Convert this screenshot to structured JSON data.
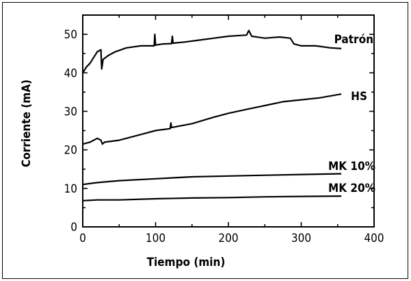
{
  "chart_data": {
    "type": "line",
    "xlabel": "Tiempo (min)",
    "ylabel": "Corriente (mA)",
    "xlim": [
      0,
      400
    ],
    "ylim": [
      0,
      55
    ],
    "xticks": [
      0,
      100,
      200,
      300,
      400
    ],
    "yticks": [
      0,
      10,
      20,
      30,
      40,
      50
    ],
    "grid": false,
    "series": [
      {
        "name": "Patrón",
        "points": [
          [
            0,
            40
          ],
          [
            5,
            41.5
          ],
          [
            10,
            42.5
          ],
          [
            15,
            44
          ],
          [
            20,
            45.5
          ],
          [
            25,
            46
          ],
          [
            26,
            41
          ],
          [
            28,
            43.5
          ],
          [
            35,
            44.5
          ],
          [
            45,
            45.5
          ],
          [
            60,
            46.5
          ],
          [
            80,
            47
          ],
          [
            98,
            47
          ],
          [
            99,
            50
          ],
          [
            100,
            47.2
          ],
          [
            110,
            47.5
          ],
          [
            122,
            47.6
          ],
          [
            123,
            49.5
          ],
          [
            124,
            47.7
          ],
          [
            140,
            48
          ],
          [
            160,
            48.5
          ],
          [
            180,
            49
          ],
          [
            200,
            49.5
          ],
          [
            225,
            49.8
          ],
          [
            228,
            51
          ],
          [
            232,
            49.5
          ],
          [
            250,
            49
          ],
          [
            270,
            49.3
          ],
          [
            285,
            49
          ],
          [
            290,
            47.5
          ],
          [
            300,
            47
          ],
          [
            320,
            47
          ],
          [
            340,
            46.5
          ],
          [
            355,
            46.3
          ]
        ]
      },
      {
        "name": "HS",
        "points": [
          [
            0,
            21.5
          ],
          [
            10,
            22
          ],
          [
            20,
            23
          ],
          [
            25,
            22.5
          ],
          [
            27,
            21.5
          ],
          [
            30,
            22
          ],
          [
            50,
            22.5
          ],
          [
            80,
            24
          ],
          [
            100,
            25
          ],
          [
            120,
            25.5
          ],
          [
            121,
            27
          ],
          [
            122,
            25.8
          ],
          [
            150,
            26.8
          ],
          [
            180,
            28.5
          ],
          [
            200,
            29.5
          ],
          [
            225,
            30.5
          ],
          [
            250,
            31.5
          ],
          [
            275,
            32.5
          ],
          [
            300,
            33
          ],
          [
            325,
            33.5
          ],
          [
            355,
            34.5
          ]
        ]
      },
      {
        "name": "MK 10%",
        "points": [
          [
            0,
            11
          ],
          [
            20,
            11.5
          ],
          [
            50,
            12
          ],
          [
            100,
            12.5
          ],
          [
            150,
            13
          ],
          [
            200,
            13.2
          ],
          [
            250,
            13.4
          ],
          [
            300,
            13.6
          ],
          [
            355,
            13.8
          ]
        ]
      },
      {
        "name": "MK 20%",
        "points": [
          [
            0,
            6.8
          ],
          [
            20,
            7
          ],
          [
            50,
            7
          ],
          [
            100,
            7.3
          ],
          [
            150,
            7.5
          ],
          [
            200,
            7.6
          ],
          [
            250,
            7.8
          ],
          [
            300,
            7.9
          ],
          [
            355,
            8
          ]
        ]
      }
    ]
  }
}
